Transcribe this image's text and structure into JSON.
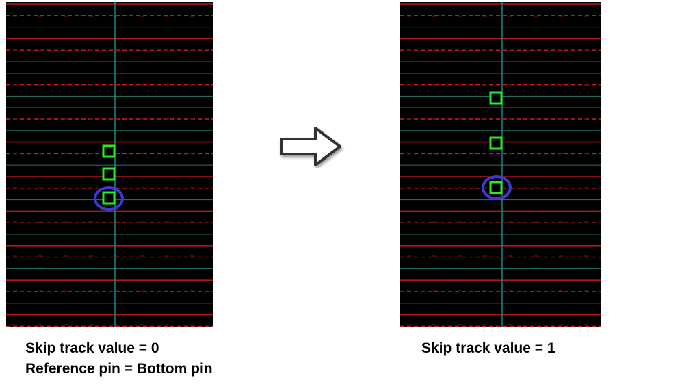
{
  "colors": {
    "background": "#000000",
    "track_solid": "#b01818",
    "track_dashed": "#cc2020",
    "grid_teal": "#1f6b5e",
    "vertical_line": "#2a8a8a",
    "pin": "#22ee22",
    "reference_circle": "#3a3ad8",
    "arrow_fill": "#ffffff",
    "arrow_stroke": "#333333"
  },
  "left": {
    "caption_line1": "Skip track value = 0",
    "caption_line2": "Reference pin = Bottom pin"
  },
  "right": {
    "caption_line1": "Skip track value = 1"
  },
  "icons": {
    "transition": "right-arrow-icon"
  }
}
